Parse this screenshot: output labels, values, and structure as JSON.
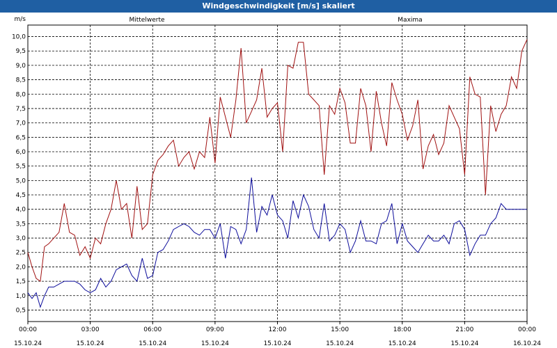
{
  "window": {
    "title": "Windgeschwindigkeit [m/s] skaliert"
  },
  "colors": {
    "titlebar": "#1f5fa3",
    "mean": "#0b0b9a",
    "max": "#a01010",
    "grid": "#000000"
  },
  "chart_data": {
    "type": "line",
    "title": "Windgeschwindigkeit [m/s] skaliert",
    "ylabel": "m/s",
    "xlabel": "",
    "ylim": [
      0.1,
      10.4
    ],
    "yticks": [
      0.5,
      1.0,
      1.5,
      2.0,
      2.5,
      3.0,
      3.5,
      4.0,
      4.5,
      5.0,
      5.5,
      6.0,
      6.5,
      7.0,
      7.5,
      8.0,
      8.5,
      9.0,
      9.5,
      10.0
    ],
    "ytick_labels": [
      "0,5",
      "1,0",
      "1,5",
      "2,0",
      "2,5",
      "3,0",
      "3,5",
      "4,0",
      "4,5",
      "5,0",
      "5,5",
      "6,0",
      "6,5",
      "7,0",
      "7,5",
      "8,0",
      "8,5",
      "9,0",
      "9,5",
      "10,0"
    ],
    "xlim": [
      0,
      24
    ],
    "xticks": [
      0,
      3,
      6,
      9,
      12,
      15,
      18,
      21,
      24
    ],
    "xtick_labels": [
      {
        "time": "00:00",
        "date": "15.10.24"
      },
      {
        "time": "03:00",
        "date": "15.10.24"
      },
      {
        "time": "06:00",
        "date": "15.10.24"
      },
      {
        "time": "09:00",
        "date": "15.10.24"
      },
      {
        "time": "12:00",
        "date": "15.10.24"
      },
      {
        "time": "15:00",
        "date": "15.10.24"
      },
      {
        "time": "18:00",
        "date": "15.10.24"
      },
      {
        "time": "21:00",
        "date": "15.10.24"
      },
      {
        "time": "00:00",
        "date": "16.10.24"
      }
    ],
    "grid": true,
    "legend": "top",
    "series": [
      {
        "name": "Mittelwerte",
        "x": [
          0,
          0.2,
          0.4,
          0.6,
          0.8,
          1.0,
          1.25,
          1.5,
          1.75,
          2.0,
          2.25,
          2.5,
          2.75,
          3.0,
          3.25,
          3.5,
          3.75,
          4.0,
          4.25,
          4.5,
          4.75,
          5.0,
          5.25,
          5.5,
          5.75,
          6.0,
          6.25,
          6.5,
          6.75,
          7.0,
          7.25,
          7.5,
          7.75,
          8.0,
          8.25,
          8.5,
          8.75,
          9.0,
          9.25,
          9.5,
          9.75,
          10.0,
          10.25,
          10.5,
          10.75,
          11.0,
          11.25,
          11.5,
          11.75,
          12.0,
          12.25,
          12.5,
          12.75,
          13.0,
          13.25,
          13.5,
          13.75,
          14.0,
          14.25,
          14.5,
          14.75,
          15.0,
          15.25,
          15.5,
          15.75,
          16.0,
          16.25,
          16.5,
          16.75,
          17.0,
          17.25,
          17.5,
          17.75,
          18.0,
          18.25,
          18.5,
          18.75,
          19.0,
          19.25,
          19.5,
          19.75,
          20.0,
          20.25,
          20.5,
          20.75,
          21.0,
          21.25,
          21.5,
          21.75,
          22.0,
          22.25,
          22.5,
          22.75,
          23.0,
          23.25,
          23.5,
          23.75,
          24.0
        ],
        "y": [
          1.1,
          0.9,
          1.1,
          0.6,
          1.0,
          1.3,
          1.3,
          1.4,
          1.5,
          1.5,
          1.5,
          1.4,
          1.2,
          1.1,
          1.2,
          1.6,
          1.3,
          1.5,
          1.9,
          2.0,
          2.1,
          1.7,
          1.5,
          2.3,
          1.6,
          1.7,
          2.5,
          2.6,
          2.9,
          3.3,
          3.4,
          3.5,
          3.4,
          3.2,
          3.1,
          3.3,
          3.3,
          3.0,
          3.5,
          2.3,
          3.4,
          3.3,
          2.8,
          3.3,
          5.1,
          3.2,
          4.1,
          3.8,
          4.5,
          3.8,
          3.6,
          3.0,
          4.3,
          3.7,
          4.5,
          4.1,
          3.3,
          3.0,
          4.2,
          2.9,
          3.1,
          3.5,
          3.3,
          2.5,
          2.9,
          3.6,
          2.9,
          2.9,
          2.8,
          3.5,
          3.6,
          4.2,
          2.8,
          3.5,
          2.9,
          2.7,
          2.5,
          2.8,
          3.1,
          2.9,
          2.9,
          3.1,
          2.8,
          3.5,
          3.6,
          3.3,
          2.4,
          2.8,
          3.1,
          3.1,
          3.5,
          3.7,
          4.2,
          4.0,
          4.0,
          4.0,
          4.0,
          4.0
        ],
        "color": "#0b0b9a"
      },
      {
        "name": "Maxima",
        "x": [
          0,
          0.2,
          0.4,
          0.6,
          0.8,
          1.0,
          1.25,
          1.5,
          1.75,
          2.0,
          2.25,
          2.5,
          2.75,
          3.0,
          3.25,
          3.5,
          3.75,
          4.0,
          4.25,
          4.5,
          4.75,
          5.0,
          5.25,
          5.5,
          5.75,
          6.0,
          6.25,
          6.5,
          6.75,
          7.0,
          7.25,
          7.5,
          7.75,
          8.0,
          8.25,
          8.5,
          8.75,
          9.0,
          9.25,
          9.5,
          9.75,
          10.0,
          10.25,
          10.5,
          10.75,
          11.0,
          11.25,
          11.5,
          11.75,
          12.0,
          12.25,
          12.5,
          12.75,
          13.0,
          13.25,
          13.5,
          13.75,
          14.0,
          14.25,
          14.5,
          14.75,
          15.0,
          15.25,
          15.5,
          15.75,
          16.0,
          16.25,
          16.5,
          16.75,
          17.0,
          17.25,
          17.5,
          17.75,
          18.0,
          18.25,
          18.5,
          18.75,
          19.0,
          19.25,
          19.5,
          19.75,
          20.0,
          20.25,
          20.5,
          20.75,
          21.0,
          21.25,
          21.5,
          21.75,
          22.0,
          22.25,
          22.5,
          22.75,
          23.0,
          23.25,
          23.5,
          23.75,
          24.0
        ],
        "y": [
          2.5,
          2.0,
          1.6,
          1.5,
          2.7,
          2.8,
          3.0,
          3.2,
          4.2,
          3.2,
          3.1,
          2.4,
          2.7,
          2.3,
          3.0,
          2.8,
          3.5,
          4.0,
          5.0,
          4.0,
          4.2,
          3.0,
          4.8,
          3.3,
          3.5,
          5.2,
          5.7,
          5.9,
          6.2,
          6.4,
          5.5,
          5.8,
          6.0,
          5.4,
          6.0,
          5.8,
          7.2,
          5.6,
          7.9,
          7.2,
          6.5,
          7.8,
          9.6,
          7.0,
          7.4,
          7.8,
          8.9,
          7.2,
          7.5,
          7.7,
          6.0,
          9.0,
          8.9,
          9.8,
          9.8,
          8.0,
          7.8,
          7.6,
          5.2,
          7.6,
          7.3,
          8.2,
          7.7,
          6.3,
          6.3,
          8.2,
          7.6,
          6.0,
          8.1,
          7.0,
          6.2,
          8.4,
          7.8,
          7.3,
          6.4,
          6.9,
          7.8,
          5.4,
          6.2,
          6.6,
          5.9,
          6.3,
          7.6,
          7.2,
          6.8,
          5.2,
          8.6,
          8.0,
          7.9,
          4.5,
          7.6,
          6.7,
          7.3,
          7.6,
          8.6,
          8.2,
          9.5,
          9.9
        ],
        "color": "#a01010"
      }
    ]
  }
}
